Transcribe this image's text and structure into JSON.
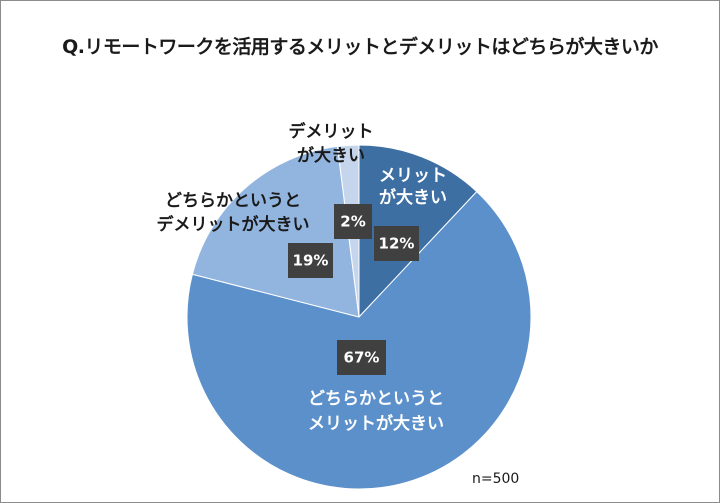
{
  "chart_data": {
    "type": "pie",
    "title": "Q.リモートワークを活用するメリットとデメリットはどちらが大きいか",
    "slices": [
      {
        "label_lines": [
          "メリット",
          "が大きい"
        ],
        "value": 12,
        "percent_label": "12%",
        "color": "#3e6fa3"
      },
      {
        "label_lines": [
          "どちらかというと",
          "メリットが大きい"
        ],
        "value": 67,
        "percent_label": "67%",
        "color": "#5b90cb"
      },
      {
        "label_lines": [
          "どちらかというと",
          "デメリットが大きい"
        ],
        "value": 19,
        "percent_label": "19%",
        "color": "#92b5df"
      },
      {
        "label_lines": [
          "デメリット",
          "が大きい"
        ],
        "value": 2,
        "percent_label": "2%",
        "color": "#c5d6ec"
      }
    ],
    "note": "n=500"
  }
}
